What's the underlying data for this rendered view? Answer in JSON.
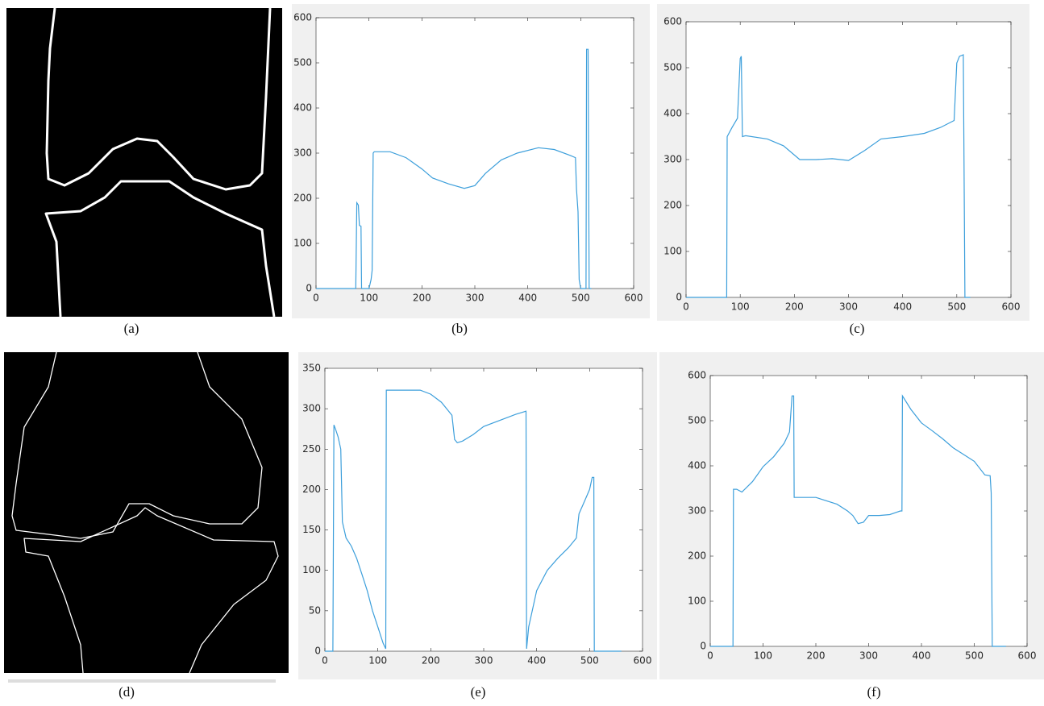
{
  "images": [
    {
      "caption": "(a)"
    },
    {
      "caption": "(d)"
    }
  ],
  "chart_data": [
    {
      "type": "line",
      "caption": "(b)",
      "color": "#3d9fdb",
      "x": [
        0,
        75,
        77,
        80,
        82,
        85,
        86,
        100,
        104,
        106,
        108,
        110,
        140,
        170,
        200,
        220,
        250,
        280,
        300,
        320,
        350,
        380,
        420,
        450,
        480,
        490,
        492,
        495,
        497,
        500,
        510,
        511,
        514,
        516,
        520
      ],
      "values": [
        0,
        0,
        190,
        185,
        140,
        138,
        0,
        0,
        20,
        40,
        300,
        303,
        303,
        290,
        265,
        245,
        232,
        222,
        228,
        255,
        285,
        300,
        312,
        308,
        295,
        290,
        220,
        170,
        20,
        0,
        0,
        530,
        530,
        0,
        0
      ],
      "xlim": [
        0,
        600
      ],
      "xticks": [
        0,
        100,
        200,
        300,
        400,
        500,
        600
      ],
      "ylim": [
        0,
        600
      ],
      "yticks": [
        0,
        100,
        200,
        300,
        400,
        500,
        600
      ]
    },
    {
      "type": "line",
      "caption": "(c)",
      "color": "#3d9fdb",
      "x": [
        0,
        75,
        76,
        85,
        95,
        100,
        102,
        104,
        110,
        150,
        180,
        210,
        240,
        270,
        300,
        330,
        360,
        400,
        440,
        470,
        495,
        500,
        505,
        512,
        515,
        525
      ],
      "values": [
        0,
        0,
        350,
        370,
        390,
        520,
        525,
        350,
        352,
        345,
        330,
        300,
        300,
        302,
        298,
        320,
        345,
        350,
        357,
        370,
        385,
        510,
        525,
        528,
        0,
        0
      ],
      "xlim": [
        0,
        600
      ],
      "xticks": [
        0,
        100,
        200,
        300,
        400,
        500,
        600
      ],
      "ylim": [
        0,
        600
      ],
      "yticks": [
        0,
        100,
        200,
        300,
        400,
        500,
        600
      ]
    },
    {
      "type": "line",
      "caption": "(e)",
      "color": "#3d9fdb",
      "x": [
        0,
        15,
        17,
        20,
        25,
        30,
        33,
        40,
        50,
        60,
        70,
        80,
        90,
        100,
        110,
        115,
        116,
        120,
        180,
        200,
        220,
        240,
        245,
        250,
        260,
        280,
        300,
        340,
        360,
        380,
        381,
        385,
        400,
        420,
        440,
        460,
        475,
        480,
        490,
        500,
        505,
        508,
        509,
        560
      ],
      "values": [
        0,
        0,
        280,
        275,
        265,
        250,
        160,
        140,
        130,
        115,
        95,
        75,
        50,
        30,
        10,
        3,
        323,
        323,
        323,
        318,
        308,
        292,
        262,
        258,
        260,
        268,
        278,
        288,
        293,
        297,
        3,
        30,
        75,
        100,
        115,
        128,
        140,
        170,
        185,
        200,
        215,
        215,
        0,
        0
      ],
      "xlim": [
        0,
        600
      ],
      "xticks": [
        0,
        100,
        200,
        300,
        400,
        500,
        600
      ],
      "ylim": [
        0,
        350
      ],
      "yticks": [
        0,
        50,
        100,
        150,
        200,
        250,
        300,
        350
      ]
    },
    {
      "type": "line",
      "caption": "(f)",
      "color": "#3d9fdb",
      "x": [
        0,
        43,
        44,
        50,
        60,
        80,
        100,
        120,
        140,
        150,
        155,
        158,
        159,
        170,
        200,
        240,
        260,
        270,
        280,
        290,
        300,
        320,
        340,
        360,
        363,
        364,
        380,
        400,
        420,
        440,
        460,
        480,
        500,
        520,
        530,
        532,
        534,
        535,
        560
      ],
      "values": [
        0,
        0,
        348,
        348,
        342,
        365,
        398,
        420,
        450,
        475,
        555,
        555,
        330,
        330,
        330,
        315,
        300,
        290,
        272,
        275,
        290,
        290,
        292,
        300,
        300,
        555,
        525,
        495,
        478,
        460,
        440,
        425,
        410,
        380,
        378,
        340,
        0,
        0,
        0
      ],
      "xlim": [
        0,
        600
      ],
      "xticks": [
        0,
        100,
        200,
        300,
        400,
        500,
        600
      ],
      "ylim": [
        0,
        600
      ],
      "yticks": [
        0,
        100,
        200,
        300,
        400,
        500,
        600
      ]
    }
  ]
}
